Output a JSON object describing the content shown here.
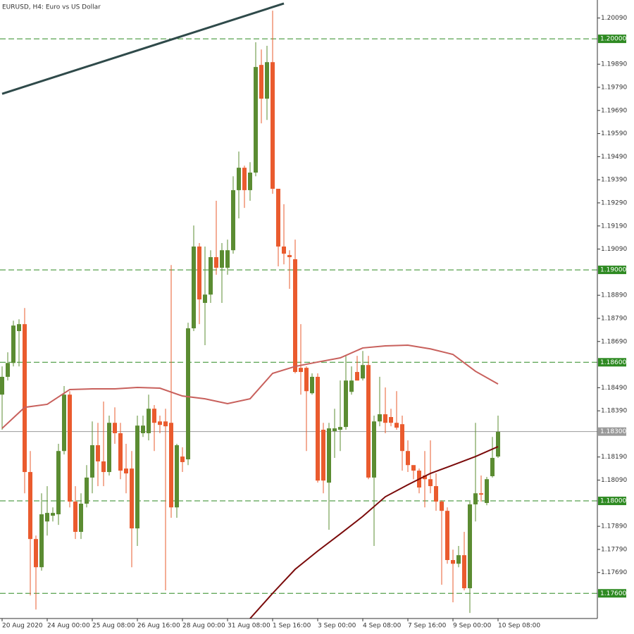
{
  "chart_data": {
    "type": "candlestick",
    "title": "EURUSD, H4:  Euro vs US Dollar",
    "categories": [
      "20 Aug 2020",
      null,
      null,
      null,
      null,
      null,
      null,
      null,
      "24 Aug 00:00",
      null,
      null,
      null,
      null,
      null,
      null,
      null,
      "25 Aug 08:00",
      null,
      null,
      null,
      null,
      null,
      null,
      null,
      "26 Aug 16:00",
      null,
      null,
      null,
      null,
      null,
      null,
      null,
      "28 Aug 00:00",
      null,
      null,
      null,
      null,
      null,
      null,
      null,
      "31 Aug 08:00",
      null,
      null,
      null,
      null,
      null,
      null,
      null,
      "1 Sep 16:00",
      null,
      null,
      null,
      null,
      null,
      null,
      null,
      "3 Sep 00:00",
      null,
      null,
      null,
      null,
      null,
      null,
      null,
      "4 Sep 08:00",
      null,
      null,
      null,
      null,
      null,
      null,
      null,
      "7 Sep 16:00",
      null,
      null,
      null,
      null,
      null,
      null,
      null,
      "9 Sep 00:00",
      null,
      null,
      null,
      null,
      null,
      null,
      null,
      "10 Sep 08:00"
    ],
    "open": [
      1.1846,
      1.18537,
      1.18597,
      1.18735,
      1.18765,
      1.18125,
      1.17835,
      1.17713,
      1.17911,
      1.17936,
      1.17942,
      1.18216,
      1.1846,
      1.17997,
      1.17866,
      1.17988,
      1.18101,
      1.18241,
      1.18171,
      1.18125,
      1.18338,
      1.18293,
      1.1814,
      1.1814,
      1.17881,
      1.18293,
      1.18293,
      1.18399,
      1.18344,
      1.18344,
      1.18338,
      1.17972,
      1.18192,
      1.1818,
      1.18747,
      1.19101,
      1.18857,
      1.18893,
      1.19055,
      1.19009,
      1.19009,
      1.19085,
      1.19345,
      1.19442,
      1.19345,
      1.19421,
      1.19887,
      1.19741,
      1.19899,
      1.19351,
      1.19101,
      1.19064,
      1.19046,
      1.18576,
      1.18576,
      1.18466,
      1.18537,
      1.18308,
      1.18079,
      1.18302,
      1.18308,
      1.1832,
      1.18472,
      1.18558,
      1.1853,
      1.18588,
      1.18101,
      1.18344,
      1.18375,
      1.18363,
      1.18338,
      1.18332,
      1.18216,
      1.18155,
      1.18131,
      1.1811,
      1.18094,
      1.18064,
      1.17997,
      1.17957,
      1.17744,
      1.17728,
      1.17765,
      1.17622,
      1.17985,
      1.18033,
      1.17991,
      1.18107,
      1.18192
    ],
    "high": [
      1.18582,
      1.18643,
      1.1878,
      1.18786,
      1.18835,
      1.18216,
      1.1785,
      1.18033,
      1.18064,
      1.17972,
      1.18247,
      1.18497,
      1.18475,
      1.18064,
      1.18033,
      1.18155,
      1.18344,
      1.18338,
      1.1843,
      1.18369,
      1.18405,
      1.18338,
      1.18247,
      1.18216,
      1.18369,
      1.18369,
      1.1846,
      1.18415,
      1.18369,
      1.18399,
      1.19021,
      1.18247,
      1.18232,
      1.18771,
      1.19192,
      1.19116,
      1.19101,
      1.19085,
      1.19299,
      1.19116,
      1.19131,
      1.19405,
      1.19512,
      1.19451,
      1.19466,
      1.19985,
      1.19954,
      1.1997,
      1.20122,
      1.19351,
      1.19284,
      1.19085,
      1.19131,
      1.18765,
      1.18582,
      1.18552,
      1.18552,
      1.18338,
      1.18338,
      1.18399,
      1.18521,
      1.18628,
      1.18582,
      1.18628,
      1.18649,
      1.18628,
      1.18369,
      1.18537,
      1.18491,
      1.18399,
      1.18475,
      1.18369,
      1.18262,
      1.18155,
      1.1814,
      1.18216,
      1.18262,
      1.18119,
      1.18003,
      1.17972,
      1.17789,
      1.17805,
      1.17866,
      1.17997,
      1.18338,
      1.1811,
      1.18104,
      1.18277,
      1.18369
    ],
    "low": [
      1.18308,
      1.18521,
      1.18582,
      1.18582,
      1.18033,
      1.17591,
      1.1753,
      1.17698,
      1.1785,
      1.17911,
      1.17896,
      1.18201,
      1.17972,
      1.17835,
      1.17835,
      1.17972,
      1.18033,
      1.18064,
      1.18064,
      1.1811,
      1.18247,
      1.18094,
      1.18033,
      1.17713,
      1.17805,
      1.18277,
      1.18262,
      1.18216,
      1.18293,
      1.17613,
      1.17927,
      1.17927,
      1.18125,
      1.18155,
      1.18735,
      1.18765,
      1.18674,
      1.18857,
      1.18979,
      1.18857,
      1.18979,
      1.1907,
      1.19223,
      1.19268,
      1.19299,
      1.19405,
      1.19634,
      1.19649,
      1.19329,
      1.19015,
      1.19024,
      1.18918,
      1.18552,
      1.1846,
      1.18216,
      1.1846,
      1.18079,
      1.18033,
      1.17875,
      1.18186,
      1.18216,
      1.18308,
      1.1846,
      1.18521,
      1.18521,
      1.18094,
      1.17805,
      1.18323,
      1.18293,
      1.18323,
      1.18308,
      1.18131,
      1.18125,
      1.18094,
      1.18033,
      1.17972,
      1.18033,
      1.17957,
      1.17637,
      1.17728,
      1.17561,
      1.17713,
      1.17613,
      1.17515,
      1.17911,
      1.17997,
      1.17981,
      1.18101,
      1.18186
    ],
    "close": [
      1.18537,
      1.18597,
      1.18759,
      1.18765,
      1.18125,
      1.17835,
      1.17713,
      1.17942,
      1.17948,
      1.17948,
      1.18216,
      1.1846,
      1.17997,
      1.17866,
      1.17988,
      1.18101,
      1.18241,
      1.18171,
      1.18125,
      1.18338,
      1.18293,
      1.18131,
      1.18119,
      1.17881,
      1.18326,
      1.18326,
      1.18399,
      1.18338,
      1.18329,
      1.18323,
      1.17972,
      1.18241,
      1.18168,
      1.18747,
      1.19101,
      1.18872,
      1.18893,
      1.19055,
      1.19009,
      1.19085,
      1.19085,
      1.19345,
      1.19442,
      1.19345,
      1.19421,
      1.19878,
      1.19741,
      1.19899,
      1.19351,
      1.19101,
      1.1907,
      1.19055,
      1.18558,
      1.18558,
      1.18475,
      1.18537,
      1.18088,
      1.18088,
      1.18314,
      1.18314,
      1.1832,
      1.18521,
      1.18521,
      1.18521,
      1.18588,
      1.18101,
      1.18344,
      1.18375,
      1.18338,
      1.18338,
      1.18317,
      1.18216,
      1.18155,
      1.18131,
      1.18058,
      1.18094,
      1.18064,
      1.17997,
      1.17957,
      1.17744,
      1.17728,
      1.17765,
      1.17622,
      1.17985,
      1.18033,
      1.18027,
      1.18094,
      1.18186,
      1.18299
    ],
    "up_color": "#5b8c32",
    "down_color": "#ea5b2e",
    "lines": [
      {
        "color": "#c8605c",
        "x": [
          0,
          4,
          8,
          12,
          16,
          20,
          24,
          28,
          32,
          36,
          40,
          44,
          48,
          52,
          56,
          60,
          64,
          68,
          72,
          76,
          80,
          84,
          88
        ],
        "values": [
          1.18314,
          1.18405,
          1.18418,
          1.18482,
          1.18485,
          1.18485,
          1.18491,
          1.18488,
          1.18454,
          1.18442,
          1.18421,
          1.18442,
          1.18552,
          1.18582,
          1.18601,
          1.18619,
          1.18662,
          1.18671,
          1.18674,
          1.18658,
          1.18634,
          1.18561,
          1.18506
        ]
      },
      {
        "color": "#7a0a0a",
        "x": [
          44,
          48,
          52,
          56,
          60,
          64,
          68,
          72,
          76,
          80,
          84,
          88
        ],
        "values": [
          1.17491,
          1.176,
          1.17704,
          1.17783,
          1.17857,
          1.17933,
          1.18018,
          1.1807,
          1.18119,
          1.18155,
          1.18192,
          1.18235
        ]
      },
      {
        "color": "#2f4a4a",
        "x": [
          0,
          50
        ],
        "values": [
          1.19762,
          1.20153
        ]
      }
    ],
    "levels": [
      {
        "value": 1.2,
        "label": "1.20000"
      },
      {
        "value": 1.19,
        "label": "1.19000"
      },
      {
        "value": 1.186,
        "label": "1.18600"
      },
      {
        "value": 1.18,
        "label": "1.18000"
      },
      {
        "value": 1.176,
        "label": "1.17600"
      }
    ],
    "level_color": "#2e8a22",
    "current_price": {
      "value": 1.183,
      "label": "1.18300"
    },
    "current_color": "#9a9a9a",
    "ylim": [
      1.17491,
      1.20168
    ],
    "yticks": [
      {
        "value": 1.2009,
        "label": "1.20090"
      },
      {
        "value": 1.1989,
        "label": "1.19890"
      },
      {
        "value": 1.1979,
        "label": "1.19790"
      },
      {
        "value": 1.1969,
        "label": "1.19690"
      },
      {
        "value": 1.1959,
        "label": "1.19590"
      },
      {
        "value": 1.1949,
        "label": "1.19490"
      },
      {
        "value": 1.1939,
        "label": "1.19390"
      },
      {
        "value": 1.1929,
        "label": "1.19290"
      },
      {
        "value": 1.1919,
        "label": "1.19190"
      },
      {
        "value": 1.1909,
        "label": "1.19090"
      },
      {
        "value": 1.1889,
        "label": "1.18890"
      },
      {
        "value": 1.1879,
        "label": "1.18790"
      },
      {
        "value": 1.1869,
        "label": "1.18690"
      },
      {
        "value": 1.1849,
        "label": "1.18490"
      },
      {
        "value": 1.1839,
        "label": "1.18390"
      },
      {
        "value": 1.1819,
        "label": "1.18190"
      },
      {
        "value": 1.1809,
        "label": "1.18090"
      },
      {
        "value": 1.1789,
        "label": "1.17890"
      },
      {
        "value": 1.1779,
        "label": "1.17790"
      },
      {
        "value": 1.1769,
        "label": "1.17690"
      }
    ]
  }
}
